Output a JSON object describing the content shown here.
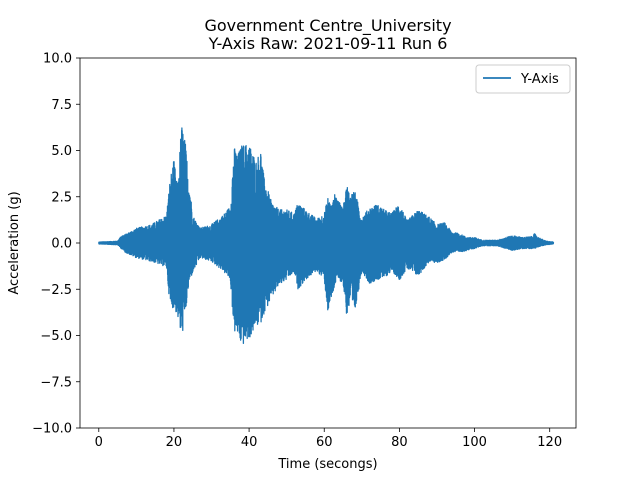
{
  "chart_data": {
    "type": "line",
    "title": "Government Centre_University",
    "subtitle": "Y-Axis Raw: 2021-09-11 Run 6",
    "xlabel": "Time (secongs)",
    "ylabel": "Acceleration (g)",
    "xlim": [
      -5,
      127
    ],
    "ylim": [
      -10,
      10
    ],
    "xticks": [
      0,
      20,
      40,
      60,
      80,
      100,
      120
    ],
    "xtick_labels": [
      "0",
      "20",
      "40",
      "60",
      "80",
      "100",
      "120"
    ],
    "yticks": [
      -10,
      -7.5,
      -5,
      -2.5,
      0,
      2.5,
      5,
      7.5,
      10
    ],
    "ytick_labels": [
      "−10.0",
      "−7.5",
      "−5.0",
      "−2.5",
      "0.0",
      "2.5",
      "5.0",
      "7.5",
      "10.0"
    ],
    "grid": false,
    "legend_position": "top-right",
    "series": [
      {
        "name": "Y-Axis",
        "color": "#1f77b4",
        "x_range": [
          0,
          121
        ],
        "envelope": {
          "time": [
            0,
            5,
            6,
            7,
            10,
            14,
            18,
            19,
            20,
            21,
            22,
            23,
            24,
            25,
            27,
            30,
            33,
            35,
            36,
            37,
            38,
            40,
            42,
            43,
            44,
            46,
            48,
            50,
            52,
            53,
            55,
            58,
            60,
            61,
            62,
            63,
            64,
            65,
            66,
            67,
            68,
            70,
            72,
            74,
            76,
            78,
            80,
            82,
            85,
            88,
            90,
            92,
            94,
            96,
            98,
            100,
            102,
            106,
            110,
            113,
            115,
            116,
            117,
            119,
            121
          ],
          "upper": [
            0.05,
            0.1,
            0.4,
            0.45,
            0.8,
            1.0,
            1.5,
            3.5,
            4.5,
            3.0,
            6.5,
            5.5,
            3.5,
            1.5,
            0.8,
            1.0,
            1.5,
            2.0,
            5.2,
            4.8,
            5.3,
            5.4,
            4.4,
            5.2,
            3.5,
            2.2,
            1.8,
            1.8,
            1.6,
            2.2,
            1.8,
            1.3,
            1.6,
            2.5,
            2.0,
            2.8,
            2.2,
            1.9,
            3.2,
            2.6,
            2.9,
            1.4,
            1.9,
            2.1,
            1.8,
            1.6,
            2.2,
            1.2,
            1.8,
            1.4,
            1.0,
            1.1,
            0.6,
            0.5,
            0.3,
            0.3,
            0.15,
            0.15,
            0.4,
            0.3,
            0.35,
            0.5,
            0.3,
            0.1,
            0.05
          ],
          "lower": [
            -0.05,
            -0.1,
            -0.3,
            -0.5,
            -0.8,
            -1.0,
            -1.3,
            -3.5,
            -3.5,
            -4.0,
            -5.2,
            -4.0,
            -2.2,
            -1.6,
            -0.8,
            -1.0,
            -1.5,
            -2.0,
            -4.8,
            -5.0,
            -5.6,
            -5.2,
            -4.5,
            -4.4,
            -3.8,
            -3.0,
            -2.3,
            -2.0,
            -1.6,
            -2.5,
            -2.0,
            -1.5,
            -2.0,
            -3.8,
            -3.0,
            -2.2,
            -2.0,
            -2.2,
            -4.0,
            -3.2,
            -4.0,
            -1.5,
            -2.2,
            -2.0,
            -1.9,
            -1.5,
            -2.0,
            -1.4,
            -1.8,
            -1.0,
            -1.1,
            -0.9,
            -0.5,
            -0.5,
            -0.4,
            -0.3,
            -0.15,
            -0.15,
            -0.4,
            -0.3,
            -0.3,
            -0.3,
            -0.2,
            -0.1,
            -0.05
          ]
        }
      }
    ]
  }
}
